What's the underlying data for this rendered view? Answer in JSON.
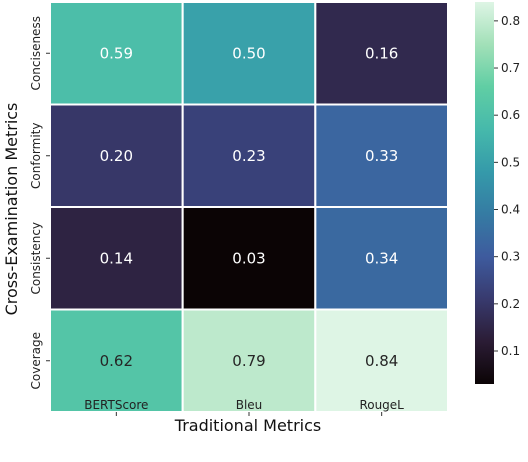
{
  "chart_data": {
    "type": "heatmap",
    "xlabel": "Traditional Metrics",
    "ylabel": "Cross-Examination Metrics",
    "columns": [
      "BERTScore",
      "Bleu",
      "RougeL"
    ],
    "rows": [
      "Conciseness",
      "Conformity",
      "Consistency",
      "Coverage"
    ],
    "values": [
      [
        0.59,
        0.5,
        0.16
      ],
      [
        0.2,
        0.23,
        0.33
      ],
      [
        0.14,
        0.03,
        0.34
      ],
      [
        0.62,
        0.79,
        0.84
      ]
    ],
    "value_labels": [
      [
        "0.59",
        "0.50",
        "0.16"
      ],
      [
        "0.20",
        "0.23",
        "0.33"
      ],
      [
        "0.14",
        "0.03",
        "0.34"
      ],
      [
        "0.62",
        "0.79",
        "0.84"
      ]
    ],
    "colorbar": {
      "range": [
        0.03,
        0.84
      ],
      "ticks": [
        0.1,
        0.2,
        0.3,
        0.4,
        0.5,
        0.6,
        0.7,
        0.8
      ],
      "tick_labels": [
        "0.1",
        "0.2",
        "0.3",
        "0.4",
        "0.5",
        "0.6",
        "0.7",
        "0.8"
      ],
      "colormap": "mako",
      "colors": [
        "#0b0405",
        "#2b1c35",
        "#383a6e",
        "#3e5b9e",
        "#357ba3",
        "#359aaa",
        "#46b9ab",
        "#60cea4",
        "#a2e0b8",
        "#def5e5"
      ]
    },
    "grid": false
  }
}
